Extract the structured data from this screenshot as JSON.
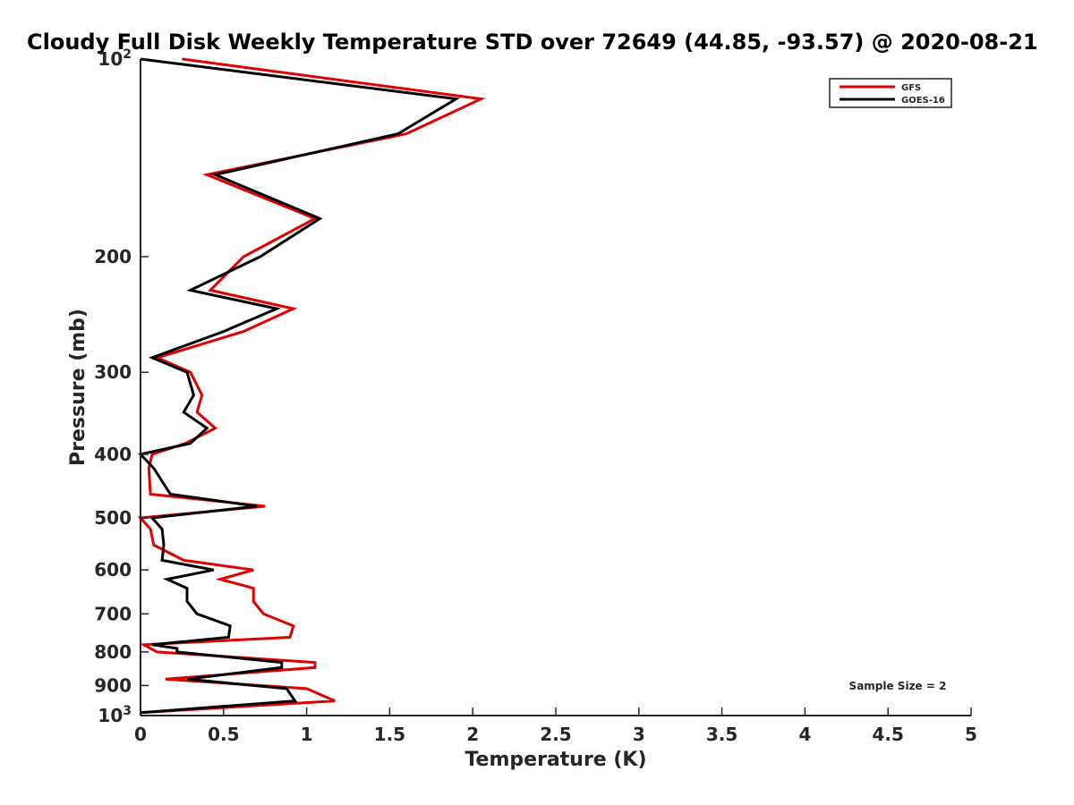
{
  "chart_data": {
    "type": "line",
    "title": "Cloudy Full Disk Weekly Temperature STD over 72649 (44.85, -93.57) @ 2020-08-21",
    "xlabel": "Temperature (K)",
    "ylabel": "Pressure (mb)",
    "xlim": [
      0,
      5
    ],
    "ylim": [
      100,
      1000
    ],
    "yscale": "log",
    "y_reversed": true,
    "xticks": [
      0,
      0.5,
      1,
      1.5,
      2,
      2.5,
      3,
      3.5,
      4,
      4.5,
      5
    ],
    "xtick_labels": [
      "0",
      "0.5",
      "1",
      "1.5",
      "2",
      "2.5",
      "3",
      "3.5",
      "4",
      "4.5",
      "5"
    ],
    "yticks": [
      100,
      200,
      300,
      400,
      500,
      600,
      700,
      800,
      900,
      1000
    ],
    "ytick_labels": [
      {
        "base": "10",
        "exp": "2"
      },
      {
        "base": "200"
      },
      {
        "base": "300"
      },
      {
        "base": "400"
      },
      {
        "base": "500"
      },
      {
        "base": "600"
      },
      {
        "base": "700"
      },
      {
        "base": "800"
      },
      {
        "base": "900"
      },
      {
        "base": "10",
        "exp": "3"
      }
    ],
    "grid": false,
    "legend_position": "top-right",
    "annotation": "Sample Size = 2",
    "series": [
      {
        "name": "GFS",
        "color": "#e00000",
        "points": [
          [
            0.25,
            100
          ],
          [
            2.05,
            115
          ],
          [
            1.6,
            130
          ],
          [
            0.4,
            150
          ],
          [
            1.05,
            175
          ],
          [
            0.62,
            200
          ],
          [
            0.42,
            225
          ],
          [
            0.92,
            240
          ],
          [
            0.62,
            260
          ],
          [
            0.1,
            285
          ],
          [
            0.3,
            300
          ],
          [
            0.37,
            325
          ],
          [
            0.34,
            345
          ],
          [
            0.45,
            365
          ],
          [
            0.27,
            385
          ],
          [
            0.07,
            400
          ],
          [
            0.05,
            420
          ],
          [
            0.06,
            460
          ],
          [
            0.75,
            480
          ],
          [
            0.0,
            500
          ],
          [
            0.06,
            520
          ],
          [
            0.08,
            550
          ],
          [
            0.26,
            580
          ],
          [
            0.68,
            600
          ],
          [
            0.48,
            620
          ],
          [
            0.68,
            640
          ],
          [
            0.68,
            670
          ],
          [
            0.74,
            700
          ],
          [
            0.92,
            730
          ],
          [
            0.9,
            760
          ],
          [
            0.02,
            780
          ],
          [
            0.1,
            800
          ],
          [
            1.05,
            830
          ],
          [
            1.05,
            845
          ],
          [
            0.15,
            880
          ],
          [
            1.0,
            910
          ],
          [
            1.17,
            950
          ],
          [
            0.0,
            990
          ]
        ]
      },
      {
        "name": "GOES-16",
        "color": "#000000",
        "points": [
          [
            0.0,
            100
          ],
          [
            1.9,
            115
          ],
          [
            1.55,
            130
          ],
          [
            0.45,
            150
          ],
          [
            1.08,
            175
          ],
          [
            0.72,
            200
          ],
          [
            0.3,
            225
          ],
          [
            0.82,
            240
          ],
          [
            0.5,
            260
          ],
          [
            0.07,
            285
          ],
          [
            0.28,
            300
          ],
          [
            0.32,
            325
          ],
          [
            0.26,
            345
          ],
          [
            0.4,
            365
          ],
          [
            0.3,
            385
          ],
          [
            0.0,
            400
          ],
          [
            0.08,
            420
          ],
          [
            0.18,
            460
          ],
          [
            0.7,
            480
          ],
          [
            0.07,
            500
          ],
          [
            0.13,
            520
          ],
          [
            0.14,
            550
          ],
          [
            0.13,
            580
          ],
          [
            0.44,
            600
          ],
          [
            0.16,
            620
          ],
          [
            0.28,
            640
          ],
          [
            0.28,
            670
          ],
          [
            0.34,
            700
          ],
          [
            0.54,
            730
          ],
          [
            0.53,
            760
          ],
          [
            0.07,
            780
          ],
          [
            0.22,
            790
          ],
          [
            0.22,
            800
          ],
          [
            0.85,
            830
          ],
          [
            0.85,
            845
          ],
          [
            0.28,
            880
          ],
          [
            0.88,
            910
          ],
          [
            0.93,
            950
          ],
          [
            0.0,
            990
          ]
        ]
      }
    ]
  }
}
